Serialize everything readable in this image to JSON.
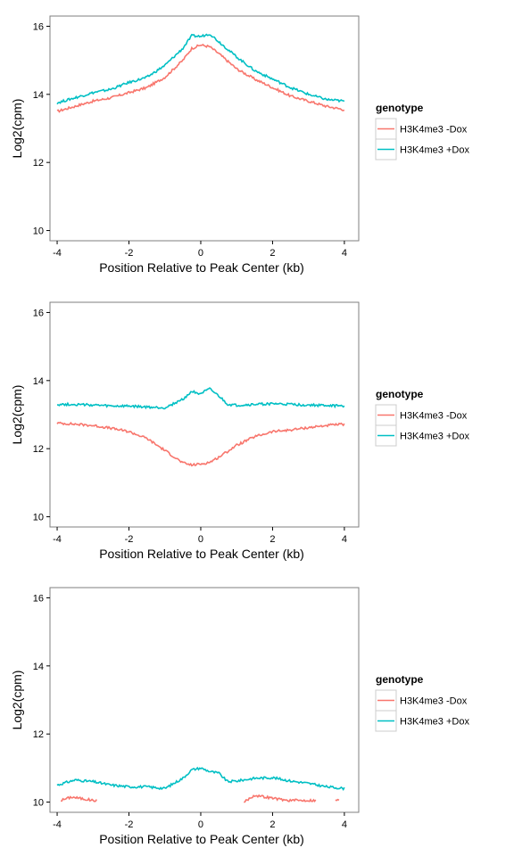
{
  "colors": {
    "minus_dox": "#F8766D",
    "plus_dox": "#00BFC4",
    "panel_border": "#7F7F7F",
    "legend_key_border": "#CCCCCC"
  },
  "chart_data": [
    {
      "type": "line",
      "xlabel": "Position Relative to Peak Center (kb)",
      "ylabel": "Log2(cpm)",
      "xlim": [
        -4.2,
        4.4
      ],
      "ylim": [
        9.7,
        16.3
      ],
      "xticks": [
        "-4",
        "-2",
        "0",
        "2",
        "4"
      ],
      "yticks": [
        "10",
        "12",
        "14",
        "16"
      ],
      "grid": false,
      "legend": {
        "title": "genotype",
        "position": "right",
        "entries": [
          "H3K4me3 -Dox",
          "H3K4me3 +Dox"
        ]
      },
      "series": [
        {
          "name": "H3K4me3 -Dox",
          "color": "#F8766D",
          "x": [
            -4,
            -3.5,
            -3,
            -2.5,
            -2,
            -1.5,
            -1,
            -0.5,
            -0.25,
            0,
            0.25,
            0.5,
            1,
            1.5,
            2,
            2.5,
            3,
            3.5,
            4
          ],
          "y": [
            13.5,
            13.65,
            13.8,
            13.9,
            14.05,
            14.2,
            14.5,
            15.0,
            15.35,
            15.45,
            15.4,
            15.2,
            14.75,
            14.45,
            14.2,
            13.95,
            13.8,
            13.65,
            13.55
          ]
        },
        {
          "name": "H3K4me3 +Dox",
          "color": "#00BFC4",
          "x": [
            -4,
            -3.5,
            -3,
            -2.5,
            -2,
            -1.5,
            -1,
            -0.5,
            -0.25,
            0,
            0.25,
            0.5,
            1,
            1.5,
            2,
            2.5,
            3,
            3.5,
            4
          ],
          "y": [
            13.75,
            13.9,
            14.05,
            14.15,
            14.35,
            14.5,
            14.85,
            15.35,
            15.72,
            15.7,
            15.78,
            15.55,
            15.1,
            14.7,
            14.45,
            14.2,
            14.0,
            13.85,
            13.8
          ]
        }
      ]
    },
    {
      "type": "line",
      "xlabel": "Position Relative to Peak Center (kb)",
      "ylabel": "Log2(cpm)",
      "xlim": [
        -4.2,
        4.4
      ],
      "ylim": [
        9.7,
        16.3
      ],
      "xticks": [
        "-4",
        "-2",
        "0",
        "2",
        "4"
      ],
      "yticks": [
        "10",
        "12",
        "14",
        "16"
      ],
      "grid": false,
      "legend": {
        "title": "genotype",
        "position": "right",
        "entries": [
          "H3K4me3 -Dox",
          "H3K4me3 +Dox"
        ]
      },
      "series": [
        {
          "name": "H3K4me3 -Dox",
          "color": "#F8766D",
          "x": [
            -4,
            -3.5,
            -3,
            -2.5,
            -2,
            -1.5,
            -1,
            -0.5,
            -0.25,
            0,
            0.25,
            0.5,
            1,
            1.5,
            2,
            2.5,
            3,
            3.5,
            4
          ],
          "y": [
            12.75,
            12.72,
            12.68,
            12.6,
            12.5,
            12.3,
            11.95,
            11.58,
            11.52,
            11.55,
            11.6,
            11.75,
            12.1,
            12.35,
            12.5,
            12.55,
            12.62,
            12.68,
            12.72
          ]
        },
        {
          "name": "H3K4me3 +Dox",
          "color": "#00BFC4",
          "x": [
            -4,
            -3.5,
            -3,
            -2.5,
            -2,
            -1.5,
            -1,
            -0.5,
            -0.25,
            0,
            0.25,
            0.5,
            0.75,
            1,
            1.5,
            2,
            2.5,
            3,
            3.5,
            4
          ],
          "y": [
            13.3,
            13.3,
            13.28,
            13.25,
            13.25,
            13.22,
            13.2,
            13.45,
            13.68,
            13.62,
            13.75,
            13.55,
            13.3,
            13.27,
            13.3,
            13.32,
            13.3,
            13.28,
            13.27,
            13.25
          ]
        }
      ]
    },
    {
      "type": "line",
      "xlabel": "Position Relative to Peak Center (kb)",
      "ylabel": "Log2(cpm)",
      "xlim": [
        -4.2,
        4.4
      ],
      "ylim": [
        9.7,
        16.3
      ],
      "xticks": [
        "-4",
        "-2",
        "0",
        "2",
        "4"
      ],
      "yticks": [
        "10",
        "12",
        "14",
        "16"
      ],
      "grid": false,
      "legend": {
        "title": "genotype",
        "position": "right",
        "entries": [
          "H3K4me3 -Dox",
          "H3K4me3 +Dox"
        ]
      },
      "series": [
        {
          "name": "H3K4me3 +Dox",
          "color": "#00BFC4",
          "x": [
            -4,
            -3.5,
            -3,
            -2.5,
            -2,
            -1.5,
            -1,
            -0.5,
            -0.25,
            0,
            0.25,
            0.5,
            0.75,
            1,
            1.5,
            2,
            2.5,
            3,
            3.5,
            4
          ],
          "y": [
            10.5,
            10.65,
            10.6,
            10.5,
            10.45,
            10.45,
            10.4,
            10.7,
            10.95,
            11.0,
            10.9,
            10.85,
            10.6,
            10.62,
            10.7,
            10.72,
            10.62,
            10.55,
            10.45,
            10.4
          ]
        }
      ],
      "fragments": [
        {
          "series": "H3K4me3 -Dox",
          "color": "#F8766D",
          "x": [
            -3.9,
            -3.6,
            -3.3,
            -3.0,
            -2.9
          ],
          "y": [
            10.05,
            10.15,
            10.1,
            10.05,
            10.05
          ]
        },
        {
          "series": "H3K4me3 -Dox",
          "color": "#F8766D",
          "x": [
            1.2,
            1.5,
            1.8,
            2.1,
            2.4,
            2.7,
            3.0,
            3.2
          ],
          "y": [
            10.0,
            10.2,
            10.15,
            10.1,
            10.05,
            10.05,
            10.05,
            10.05
          ]
        },
        {
          "series": "H3K4me3 -Dox",
          "color": "#F8766D",
          "x": [
            3.75,
            3.85
          ],
          "y": [
            10.05,
            10.05
          ]
        }
      ]
    }
  ]
}
